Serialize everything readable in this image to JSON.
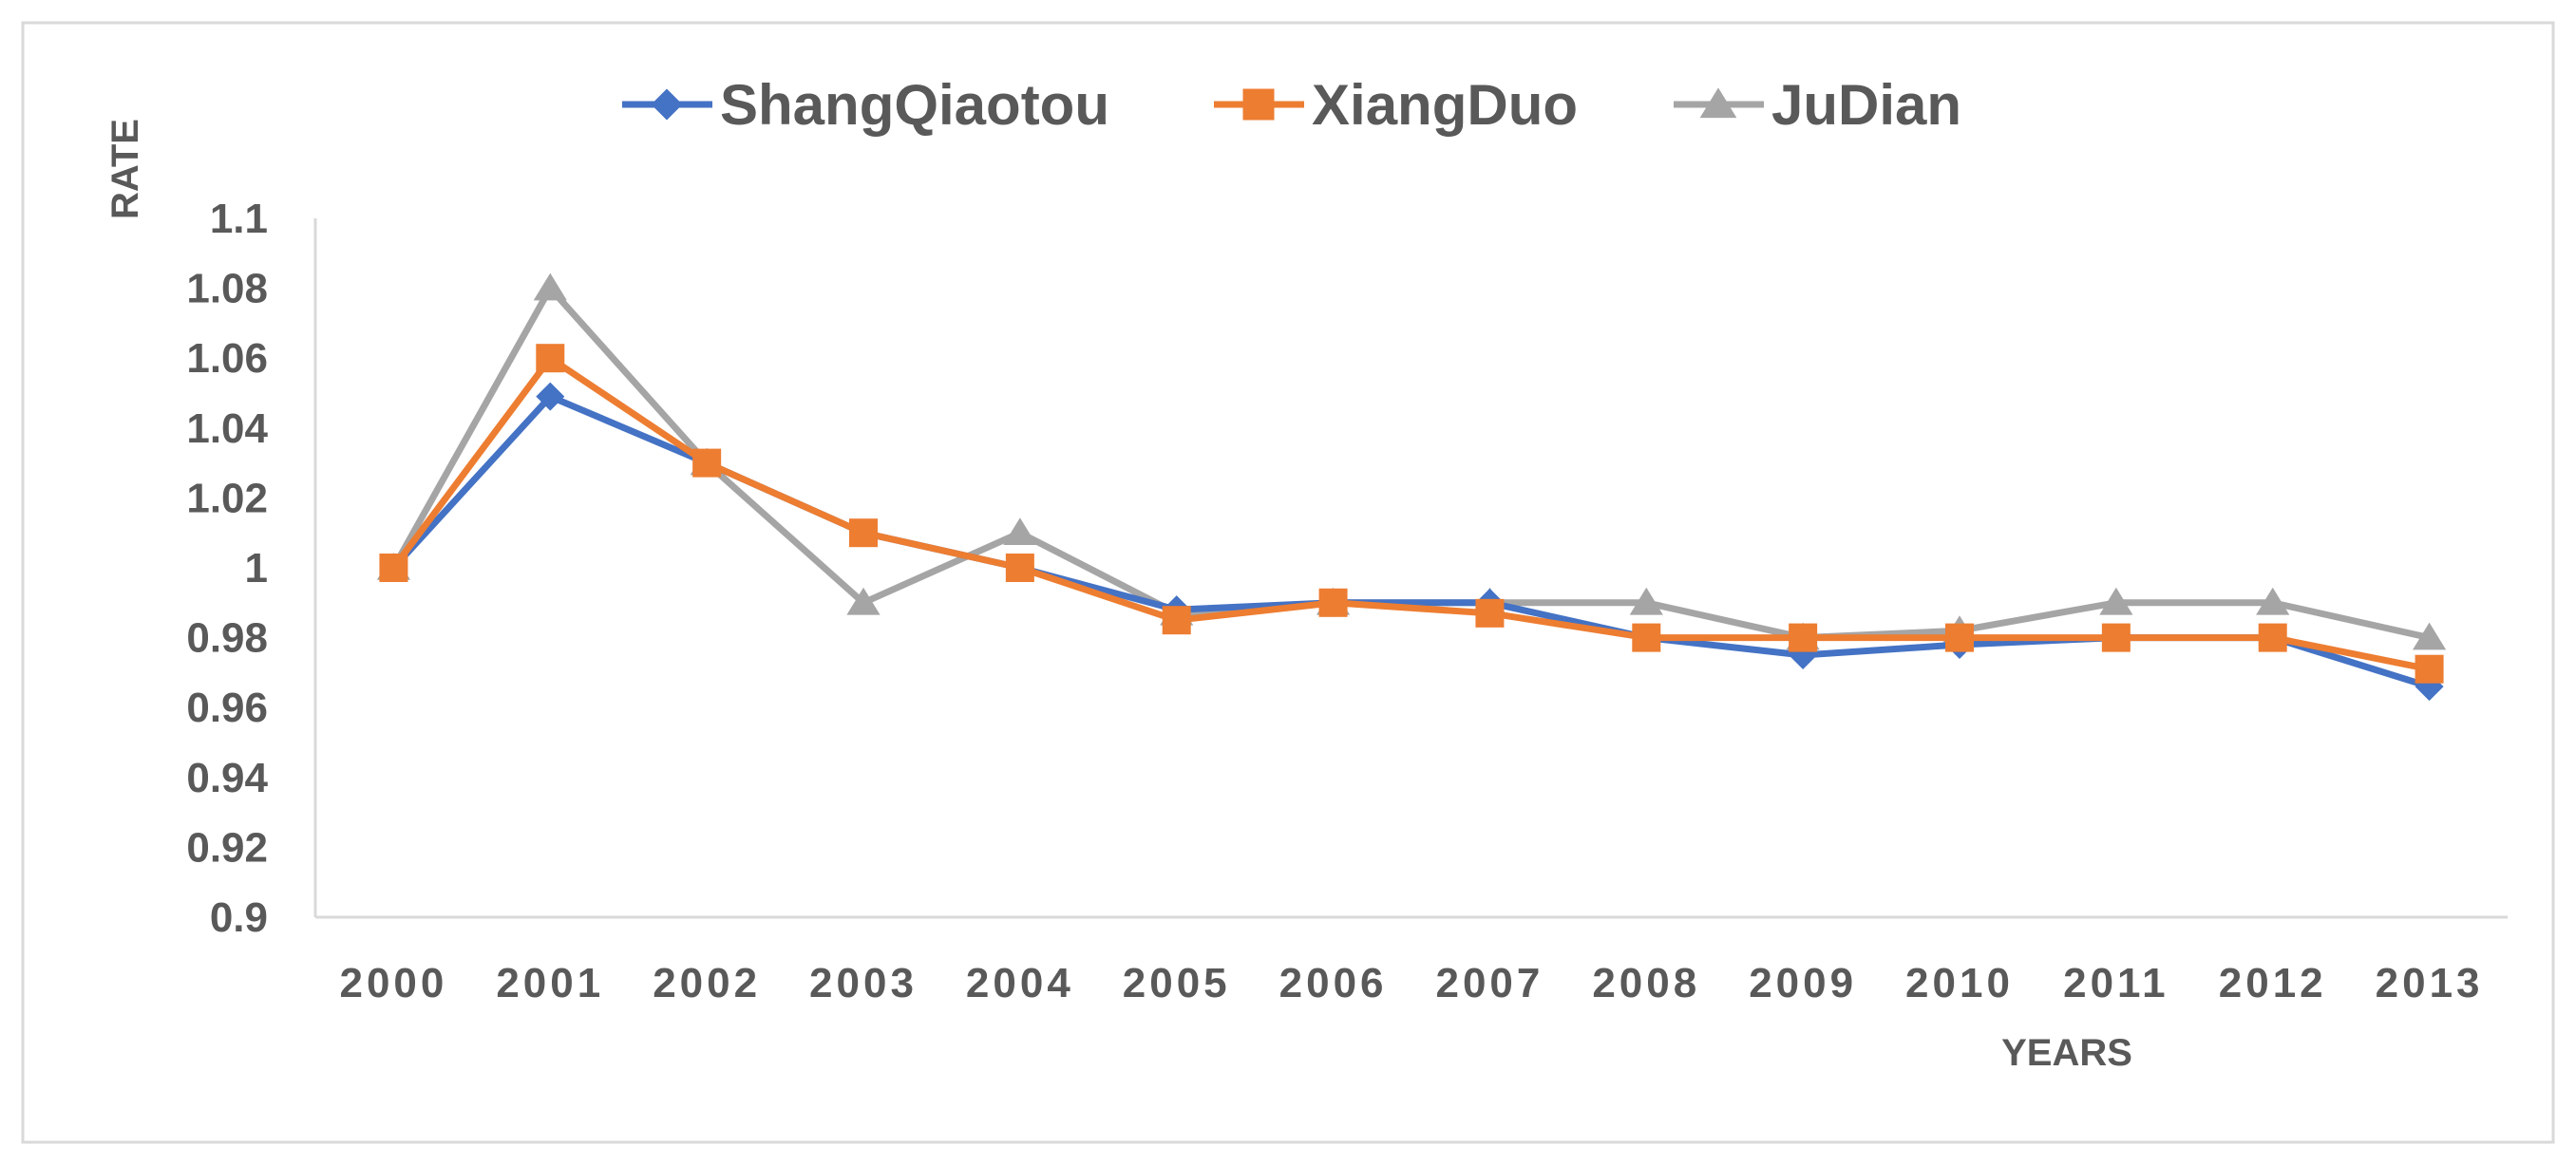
{
  "chart_data": {
    "type": "line",
    "title": "",
    "xlabel": "YEARS",
    "ylabel": "RATE",
    "x": [
      "2000",
      "2001",
      "2002",
      "2003",
      "2004",
      "2005",
      "2006",
      "2007",
      "2008",
      "2009",
      "2010",
      "2011",
      "2012",
      "2013"
    ],
    "ylim": [
      0.9,
      1.1
    ],
    "yticks": [
      "0.9",
      "0.92",
      "0.94",
      "0.96",
      "0.98",
      "1",
      "1.02",
      "1.04",
      "1.06",
      "1.08",
      "1.1"
    ],
    "grid": false,
    "legend_position": "top",
    "series": [
      {
        "name": "ShangQiaotou",
        "color": "#4472C4",
        "marker": "diamond",
        "values": [
          1.0,
          1.049,
          1.03,
          1.01,
          1.0,
          0.988,
          0.99,
          0.99,
          0.98,
          0.975,
          0.978,
          0.98,
          0.98,
          0.966
        ]
      },
      {
        "name": "XiangDuo",
        "color": "#ED7D31",
        "marker": "square",
        "values": [
          1.0,
          1.06,
          1.03,
          1.01,
          1.0,
          0.985,
          0.99,
          0.987,
          0.98,
          0.98,
          0.98,
          0.98,
          0.98,
          0.971
        ]
      },
      {
        "name": "JuDian",
        "color": "#A5A5A5",
        "marker": "triangle",
        "values": [
          1.0,
          1.08,
          1.03,
          0.99,
          1.01,
          0.987,
          0.99,
          0.99,
          0.99,
          0.98,
          0.982,
          0.99,
          0.99,
          0.98
        ]
      }
    ]
  }
}
